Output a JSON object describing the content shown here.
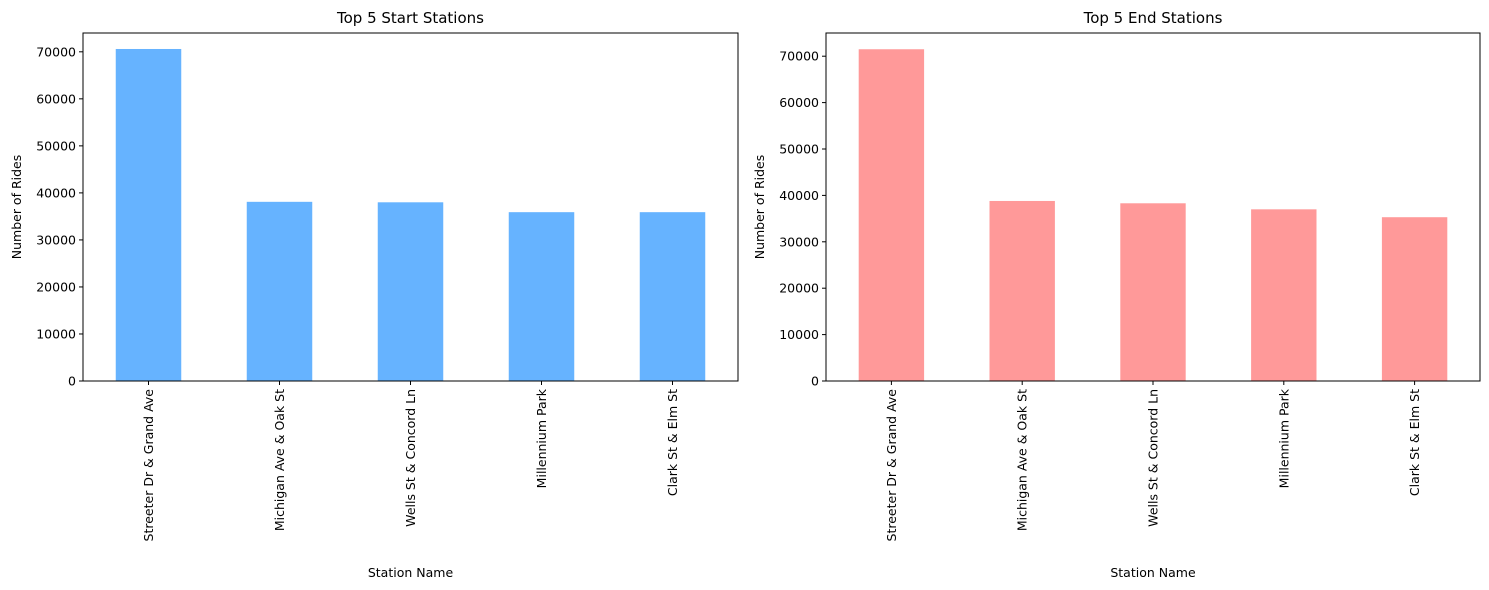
{
  "chart_data": [
    {
      "type": "bar",
      "title": "Top 5 Start Stations",
      "xlabel": "Station Name",
      "ylabel": "Number of Rides",
      "categories": [
        "Streeter Dr & Grand Ave",
        "Michigan Ave & Oak St",
        "Wells St & Concord Ln",
        "Millennium Park",
        "Clark St & Elm St"
      ],
      "values": [
        70600,
        38100,
        38000,
        35900,
        35900
      ],
      "ylim": [
        0,
        74000
      ],
      "yticks": [
        0,
        10000,
        20000,
        30000,
        40000,
        50000,
        60000,
        70000
      ],
      "color": "#66b3ff",
      "grid": false,
      "legend": "none"
    },
    {
      "type": "bar",
      "title": "Top 5 End Stations",
      "xlabel": "Station Name",
      "ylabel": "Number of Rides",
      "categories": [
        "Streeter Dr & Grand Ave",
        "Michigan Ave & Oak St",
        "Wells St & Concord Ln",
        "Millennium Park",
        "Clark St & Elm St"
      ],
      "values": [
        71500,
        38800,
        38300,
        37000,
        35300
      ],
      "ylim": [
        0,
        75000
      ],
      "yticks": [
        0,
        10000,
        20000,
        30000,
        40000,
        50000,
        60000,
        70000
      ],
      "color": "#ff9999",
      "grid": false,
      "legend": "none"
    }
  ]
}
